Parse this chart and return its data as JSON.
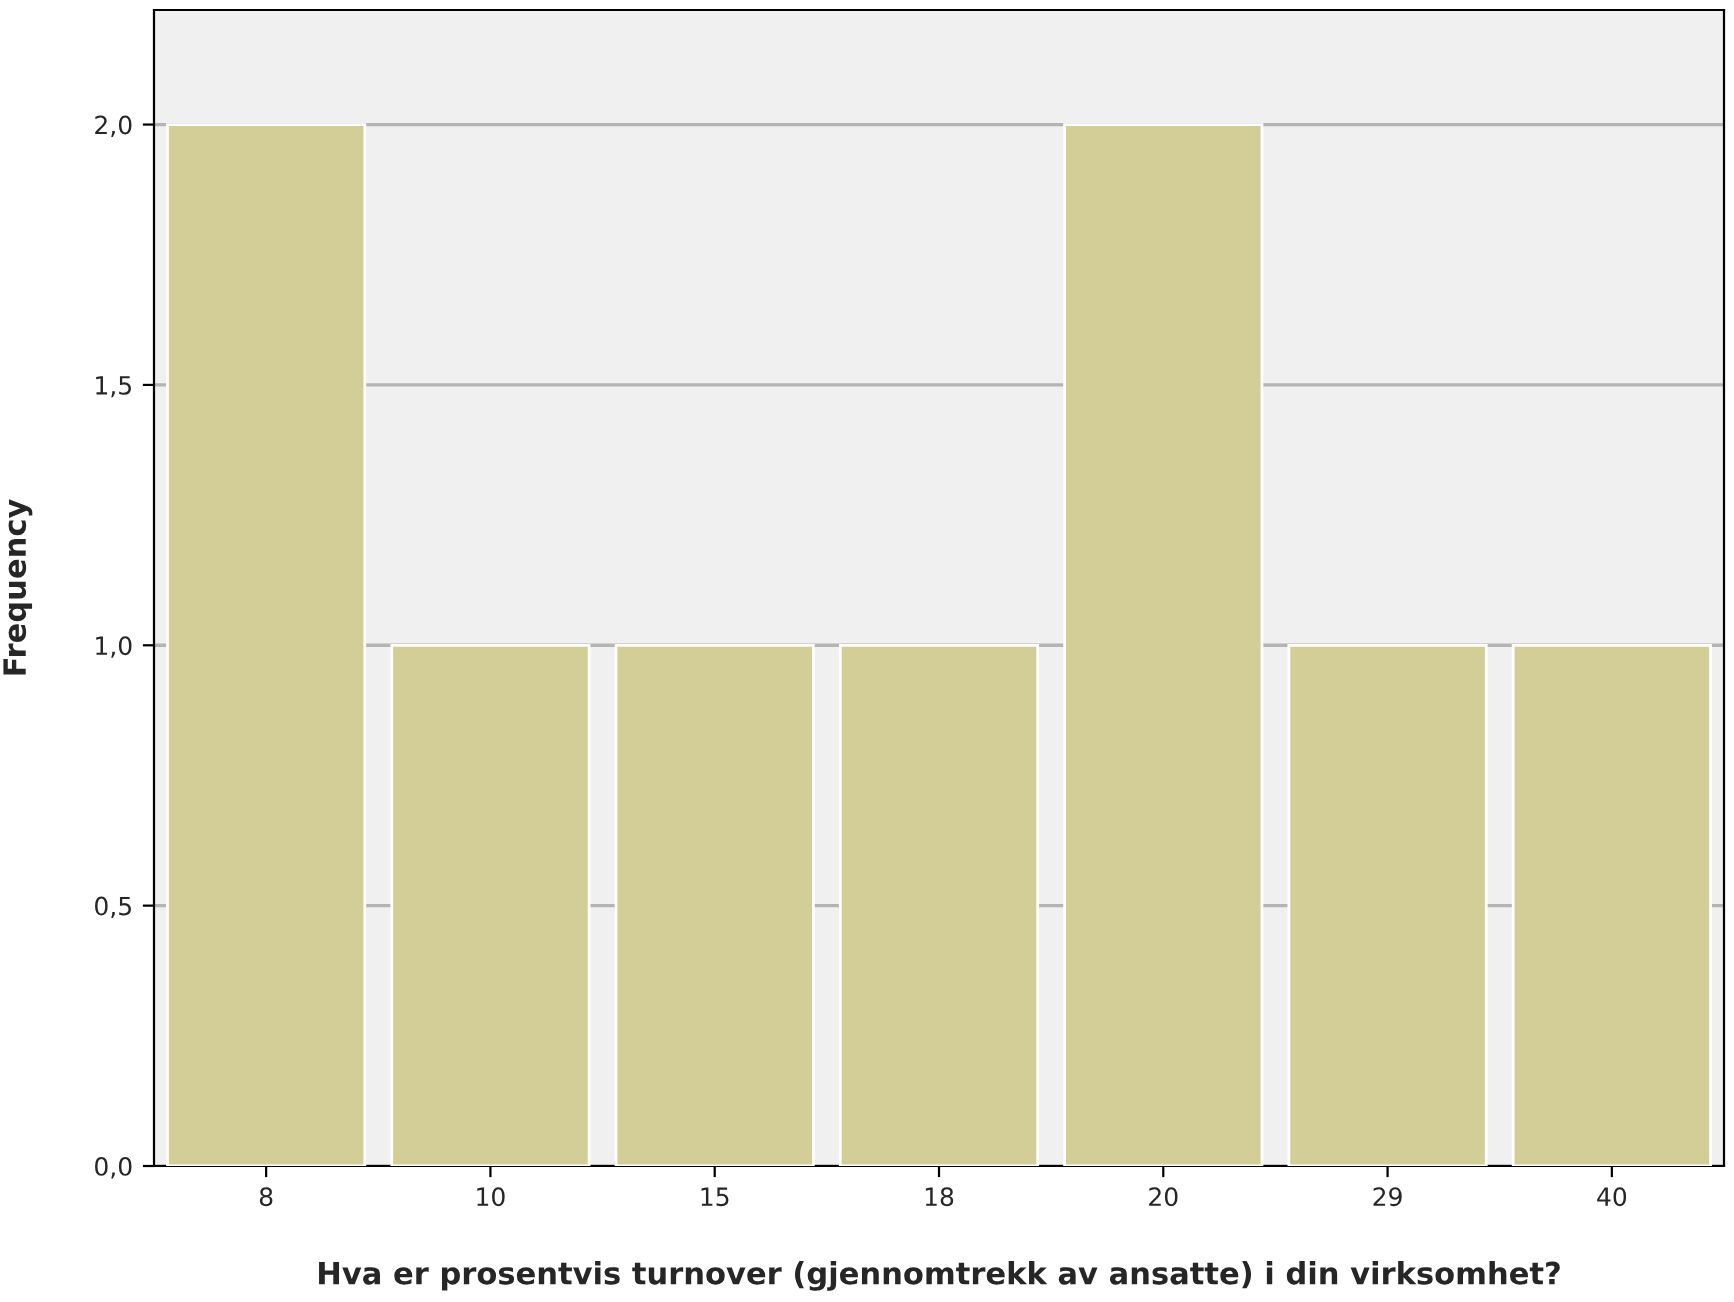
{
  "chart_data": {
    "type": "bar",
    "xlabel": "Hva er prosentvis turnover (gjennomtrekk av ansatte) i din virksomhet?",
    "ylabel": "Frequency",
    "categories": [
      "8",
      "10",
      "15",
      "18",
      "20",
      "29",
      "40"
    ],
    "values": [
      2,
      1,
      1,
      1,
      2,
      1,
      1
    ],
    "color": "#d3ce97",
    "ylim": [
      0,
      2.22
    ],
    "yticks": [
      {
        "value": 0,
        "label": "0,0"
      },
      {
        "value": 0.5,
        "label": "0,5"
      },
      {
        "value": 1,
        "label": "1,0"
      },
      {
        "value": 1.5,
        "label": "1,5"
      },
      {
        "value": 2,
        "label": "2,0"
      }
    ],
    "grid": "y"
  }
}
